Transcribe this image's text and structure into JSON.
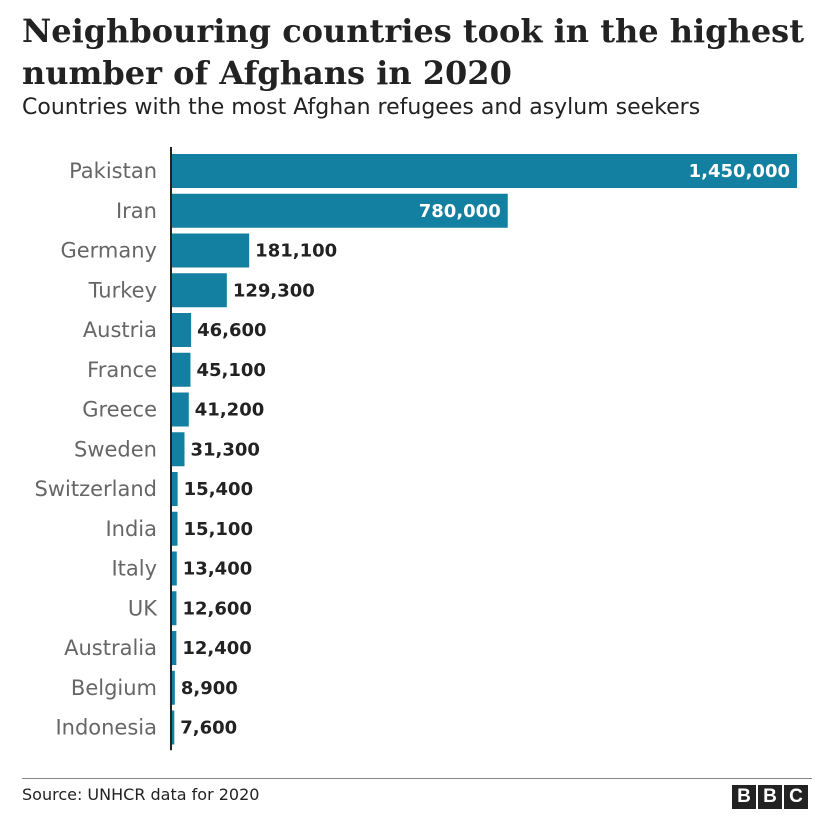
{
  "title": "Neighbouring countries took in the highest number of Afghans in 2020",
  "subtitle": "Countries with the most Afghan refugees and asylum seekers",
  "source": "Source: UNHCR data for 2020",
  "logo": {
    "letters": [
      "B",
      "B",
      "C"
    ]
  },
  "colors": {
    "bar": "#1380a1",
    "baseline": "#222222",
    "label": "#666666"
  },
  "chart_data": {
    "type": "bar",
    "orientation": "horizontal",
    "categories": [
      "Pakistan",
      "Iran",
      "Germany",
      "Turkey",
      "Austria",
      "France",
      "Greece",
      "Sweden",
      "Switzerland",
      "India",
      "Italy",
      "UK",
      "Australia",
      "Belgium",
      "Indonesia"
    ],
    "values": [
      1450000,
      780000,
      181100,
      129300,
      46600,
      45100,
      41200,
      31300,
      15400,
      15100,
      13400,
      12600,
      12400,
      8900,
      7600
    ],
    "value_labels": [
      "1,450,000",
      "780,000",
      "181,100",
      "129,300",
      "46,600",
      "45,100",
      "41,200",
      "31,300",
      "15,400",
      "15,100",
      "13,400",
      "12,600",
      "12,400",
      "8,900",
      "7,600"
    ],
    "xlim": [
      0,
      1450000
    ],
    "grid": false,
    "legend": "none"
  }
}
